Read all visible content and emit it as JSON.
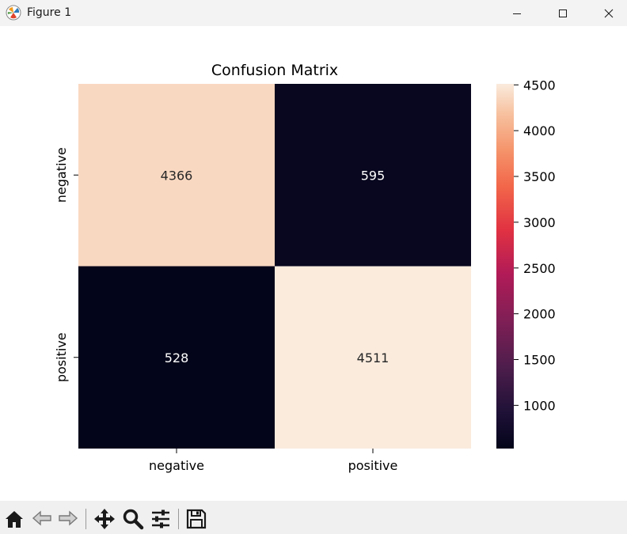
{
  "window": {
    "title": "Figure 1"
  },
  "chart_data": {
    "type": "heatmap",
    "title": "Confusion Matrix",
    "xlabel": "",
    "ylabel": "",
    "x_tick_labels": [
      "negative",
      "positive"
    ],
    "y_tick_labels": [
      "negative",
      "positive"
    ],
    "matrix": [
      [
        4366,
        595
      ],
      [
        528,
        4511
      ]
    ],
    "annotations": [
      [
        "4366",
        "595"
      ],
      [
        "528",
        "4511"
      ]
    ],
    "colormap": "rocket",
    "colorbar": {
      "min": 528,
      "max": 4511,
      "ticks": [
        1000,
        1500,
        2000,
        2500,
        3000,
        3500,
        4000,
        4500
      ],
      "tick_labels": [
        "1000",
        "1500",
        "2000",
        "2500",
        "3000",
        "3500",
        "4000",
        "4500"
      ]
    }
  },
  "toolbar": {
    "items": [
      {
        "name": "home-icon"
      },
      {
        "name": "back-arrow-icon"
      },
      {
        "name": "forward-arrow-icon"
      },
      {
        "name": "pan-move-icon"
      },
      {
        "name": "zoom-magnifier-icon"
      },
      {
        "name": "configure-subplots-icon"
      },
      {
        "name": "save-floppy-icon"
      }
    ]
  },
  "colors": {
    "titlebar_bg": "#f3f3f3",
    "toolbar_bg": "#f0f0f0",
    "dark_cell_text": "#ffffff",
    "light_cell_text": "#262626"
  }
}
